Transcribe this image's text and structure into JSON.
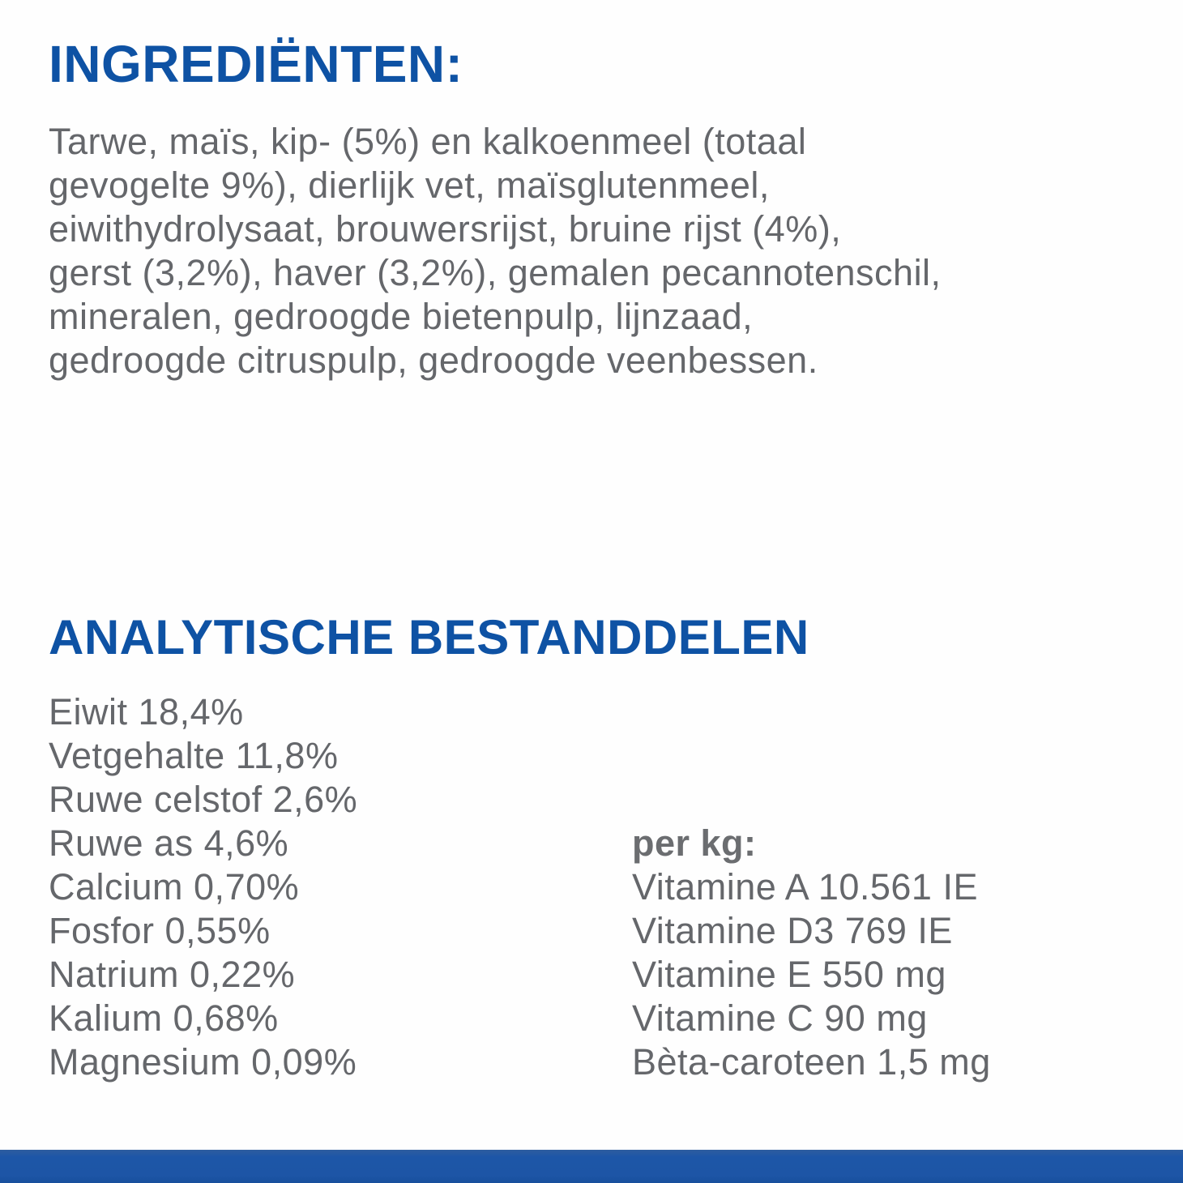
{
  "page": {
    "background_color": "#ffffff",
    "accent_blue": "#0e52a4",
    "text_gray": "#65676b",
    "bottom_bar_color": "#1d55a6"
  },
  "ingredients": {
    "heading": "INGREDIËNTEN:",
    "lines": [
      "Tarwe, maïs, kip- (5%) en kalkoenmeel (totaal",
      "gevogelte 9%), dierlijk vet, maïsglutenmeel,",
      "eiwithydrolysaat, brouwersrijst, bruine rijst (4%),",
      "gerst (3,2%), haver (3,2%), gemalen pecannotenschil,",
      "mineralen, gedroogde bietenpulp, lijnzaad,",
      "gedroogde citruspulp, gedroogde veenbessen."
    ]
  },
  "analysis": {
    "heading": "ANALYTISCHE BESTANDDELEN",
    "left_items": [
      "Eiwit 18,4%",
      "Vetgehalte 11,8%",
      "Ruwe celstof 2,6%",
      "Ruwe as 4,6%",
      "Calcium 0,70%",
      "Fosfor 0,55%",
      "Natrium 0,22%",
      "Kalium 0,68%",
      "Magnesium 0,09%"
    ],
    "per_kg_label": "per kg:",
    "per_kg_items": [
      "Vitamine A 10.561 IE",
      "Vitamine D3 769 IE",
      "Vitamine E 550 mg",
      "Vitamine C 90 mg",
      "Bèta-caroteen 1,5 mg"
    ]
  }
}
